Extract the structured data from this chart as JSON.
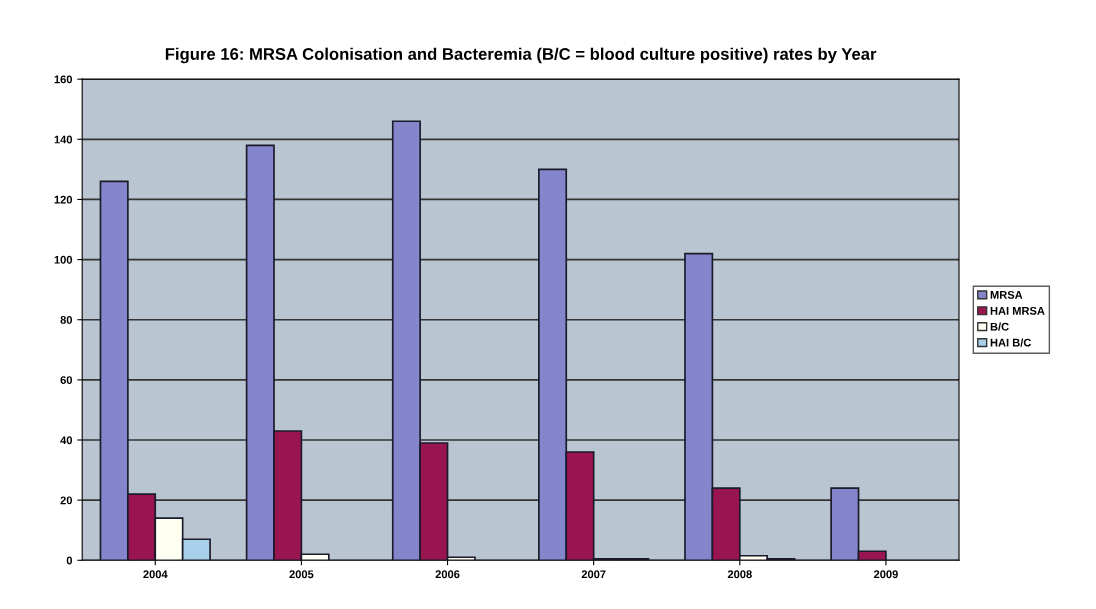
{
  "chart_data": {
    "type": "bar",
    "title": "Figure 16: MRSA Colonisation and Bacteremia (B/C = blood culture positive) rates by Year",
    "categories": [
      "2004",
      "2005",
      "2006",
      "2007",
      "2008",
      "2009"
    ],
    "series": [
      {
        "name": "MRSA",
        "color": "#8585cc",
        "values": [
          126,
          138,
          146,
          130,
          102,
          24
        ]
      },
      {
        "name": "HAI MRSA",
        "color": "#991550",
        "values": [
          22,
          43,
          39,
          36,
          24,
          3
        ]
      },
      {
        "name": "B/C",
        "color": "#fffff2",
        "values": [
          14,
          2,
          1,
          0.5,
          1.5,
          0
        ]
      },
      {
        "name": "HAI B/C",
        "color": "#a8d0ea",
        "values": [
          7,
          0,
          0,
          0.5,
          0.5,
          0
        ]
      }
    ],
    "ylim": [
      0,
      160
    ],
    "yticks": [
      0,
      20,
      40,
      60,
      80,
      100,
      120,
      140,
      160
    ],
    "grid": "y",
    "legend": "right"
  }
}
